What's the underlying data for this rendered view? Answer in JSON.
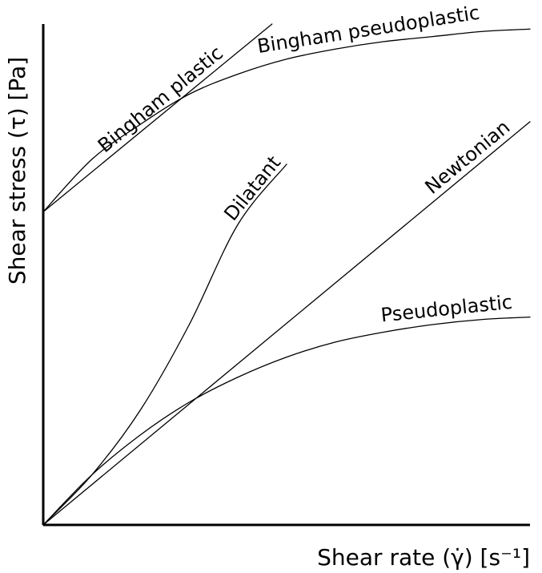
{
  "chart_data": {
    "type": "line",
    "title": "",
    "xlabel": "Shear rate (γ̇) [s⁻¹]",
    "ylabel": "Shear stress (τ) [Pa]",
    "xlim": [
      0,
      1
    ],
    "ylim": [
      0,
      1
    ],
    "grid": false,
    "legend": "none",
    "series": [
      {
        "name": "Bingham plastic",
        "x": [
          0,
          0.47
        ],
        "y": [
          0.625,
          1.0
        ]
      },
      {
        "name": "Bingham pseudoplastic",
        "x": [
          0,
          0.1,
          0.2,
          0.3,
          0.4,
          0.5,
          0.6,
          0.7,
          0.8,
          0.9,
          1.0
        ],
        "y": [
          0.625,
          0.73,
          0.8,
          0.86,
          0.9,
          0.93,
          0.95,
          0.965,
          0.975,
          0.985,
          0.99
        ]
      },
      {
        "name": "Dilatant",
        "x": [
          0,
          0.1,
          0.2,
          0.3,
          0.4,
          0.5
        ],
        "y": [
          0,
          0.1,
          0.23,
          0.4,
          0.6,
          0.72
        ]
      },
      {
        "name": "Newtonian",
        "x": [
          0,
          1.0
        ],
        "y": [
          0,
          0.805
        ]
      },
      {
        "name": "Pseudoplastic",
        "x": [
          0,
          0.1,
          0.2,
          0.3,
          0.4,
          0.5,
          0.6,
          0.7,
          0.8,
          0.9,
          1.0
        ],
        "y": [
          0,
          0.1,
          0.18,
          0.245,
          0.295,
          0.335,
          0.365,
          0.385,
          0.4,
          0.41,
          0.415
        ]
      }
    ]
  }
}
